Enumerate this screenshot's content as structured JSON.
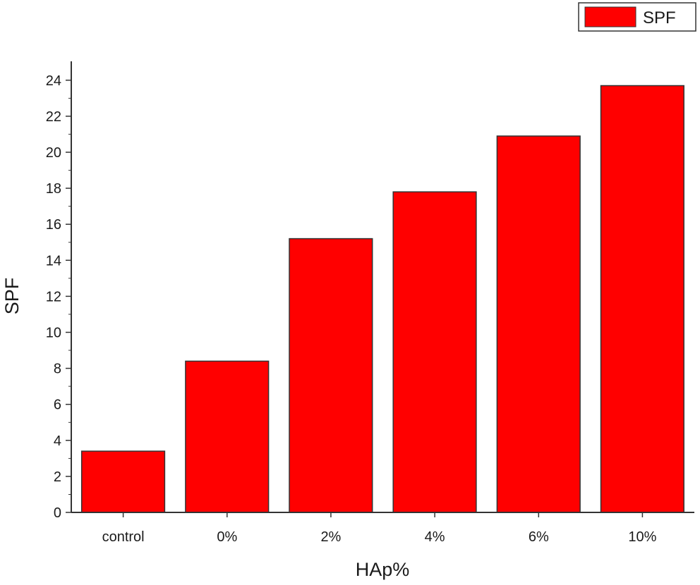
{
  "chart_data": {
    "type": "bar",
    "categories": [
      "control",
      "0%",
      "2%",
      "4%",
      "6%",
      "10%"
    ],
    "series": [
      {
        "name": "SPF",
        "values": [
          3.4,
          8.4,
          15.2,
          17.8,
          20.9,
          23.7
        ],
        "color": "#ff0000"
      }
    ],
    "xlabel": "HAp%",
    "ylabel": "SPF",
    "ylim": [
      0,
      25
    ],
    "yticks": [
      0,
      2,
      4,
      6,
      8,
      10,
      12,
      14,
      16,
      18,
      20,
      22,
      24
    ],
    "grid": false,
    "legend": {
      "position": "top-right",
      "entries": [
        "SPF"
      ]
    }
  }
}
